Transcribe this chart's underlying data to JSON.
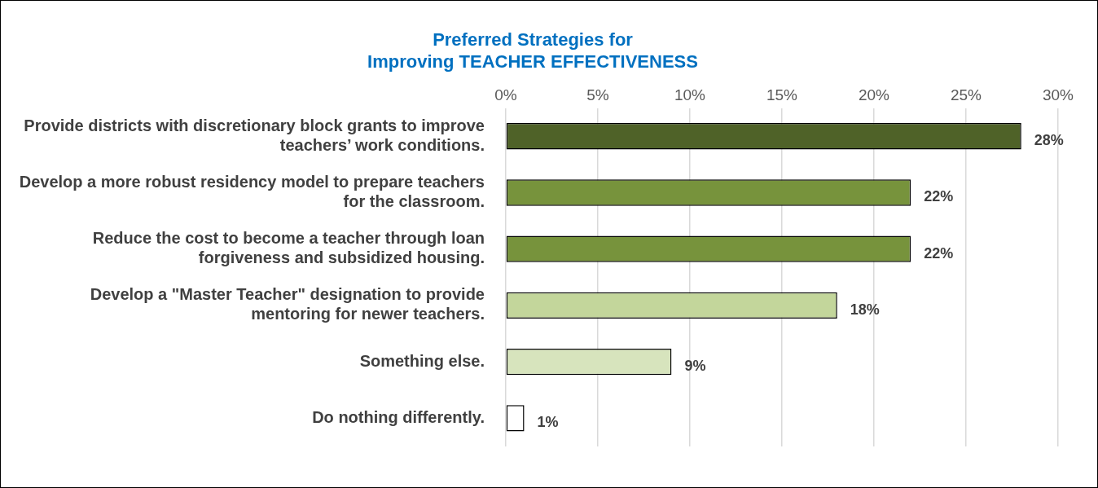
{
  "chart_data": {
    "type": "bar",
    "orientation": "horizontal",
    "title": "Preferred Strategies for\nImproving TEACHER EFFECTIVENESS",
    "categories": [
      "Provide districts with discretionary block grants to improve teachers’ work conditions.",
      "Develop a more robust residency model to prepare teachers for the classroom.",
      "Reduce the cost to become a teacher through loan forgiveness and subsidized housing.",
      "Develop a \"Master Teacher\" designation to provide mentoring for newer teachers.",
      "Something else.",
      "Do nothing differently."
    ],
    "values": [
      28,
      22,
      22,
      18,
      9,
      1
    ],
    "value_labels": [
      "28%",
      "22%",
      "22%",
      "18%",
      "9%",
      "1%"
    ],
    "colors": [
      "#4f6228",
      "#77933c",
      "#77933c",
      "#c3d69b",
      "#d7e4bd",
      "#ffffff"
    ],
    "xlim": [
      0,
      30
    ],
    "xticks": [
      {
        "value": 0,
        "label": "0%"
      },
      {
        "value": 5,
        "label": "5%"
      },
      {
        "value": 10,
        "label": "10%"
      },
      {
        "value": 15,
        "label": "15%"
      },
      {
        "value": 20,
        "label": "20%"
      },
      {
        "value": 25,
        "label": "25%"
      },
      {
        "value": 30,
        "label": "30%"
      }
    ],
    "grid": "x",
    "legend": false
  }
}
